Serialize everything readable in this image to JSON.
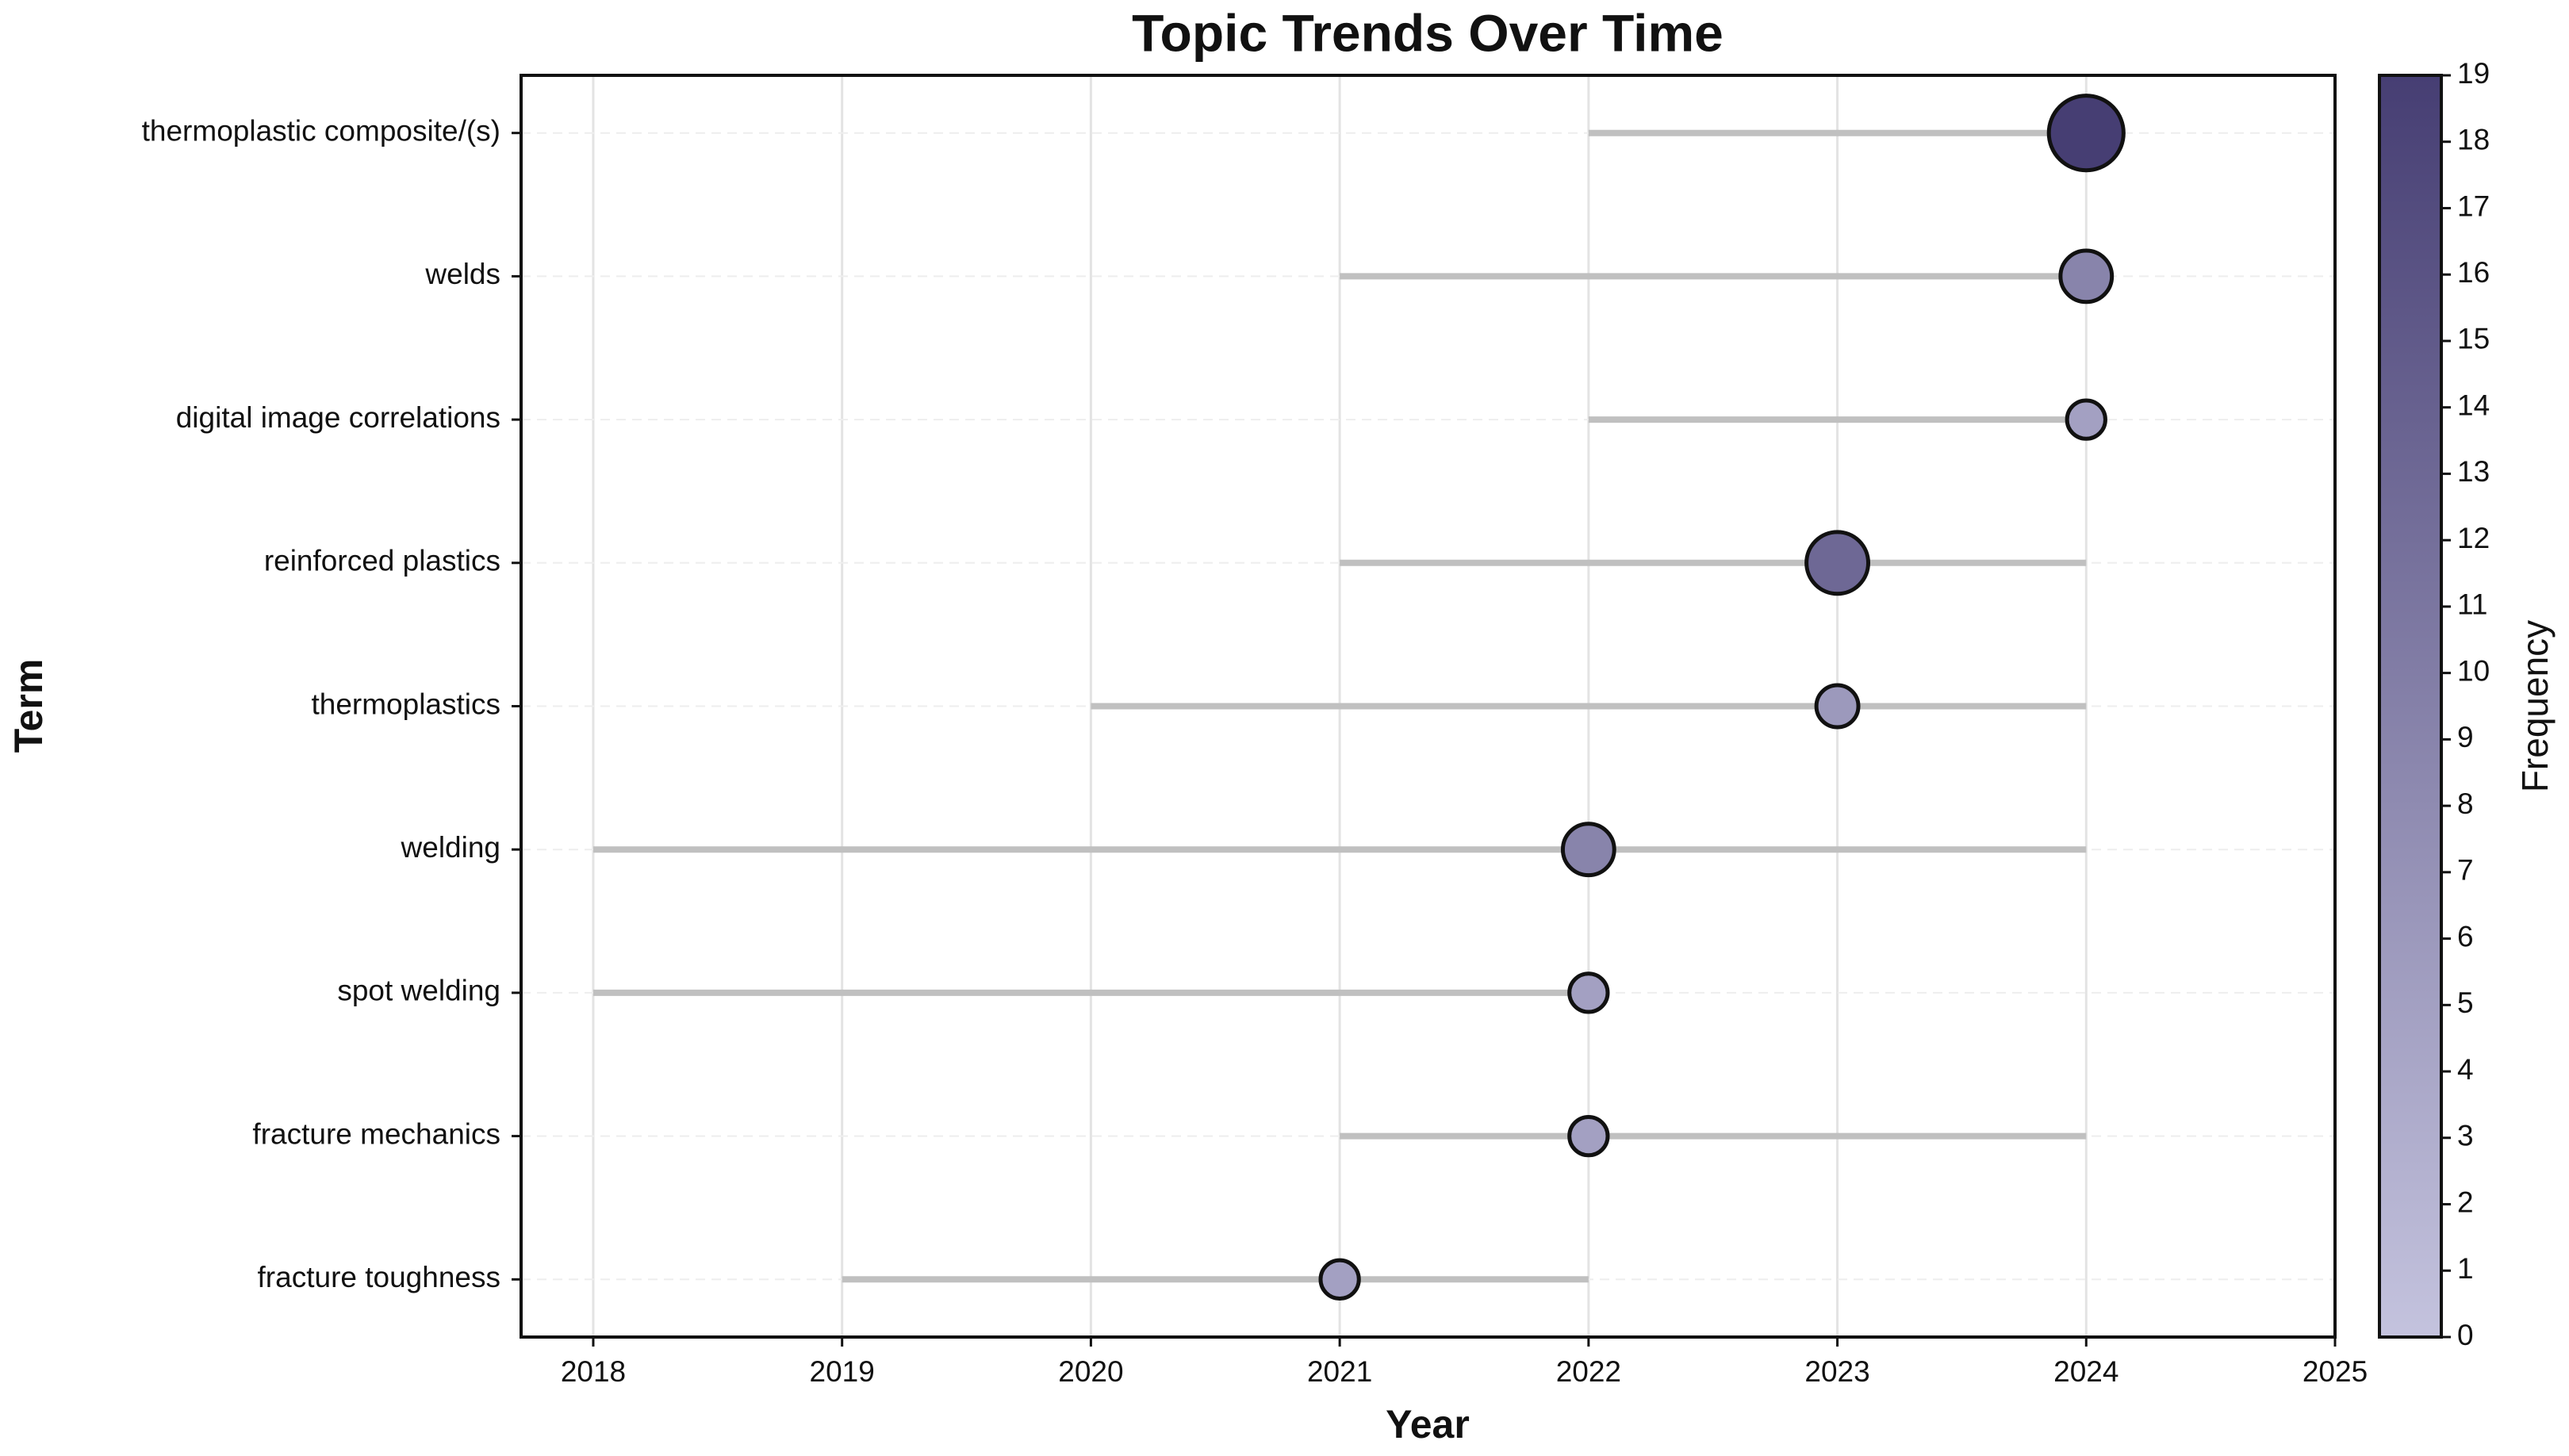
{
  "chart_data": {
    "type": "timeline",
    "title": "Topic Trends Over Time",
    "x_label": "Year",
    "y_label": "Term",
    "categories": [
      "thermoplastic composite/(s)",
      "welds",
      "digital image correlations",
      "reinforced plastics",
      "thermoplastics",
      "welding",
      "spot welding",
      "fracture mechanics",
      "fracture toughness"
    ],
    "start": [
      2022,
      2021,
      2022,
      2021,
      2020,
      2018,
      2018,
      2021,
      2019
    ],
    "end": [
      2024,
      2024,
      2024,
      2024,
      2024,
      2024,
      2022,
      2024,
      2022
    ],
    "peak": [
      2024,
      2024,
      2024,
      2023,
      2023,
      2022,
      2022,
      2022,
      2021
    ],
    "values": [
      19,
      9,
      5,
      13,
      6,
      9,
      5,
      5,
      5
    ],
    "range_color": "#c0c0c0",
    "colormap": [
      "#c4c3de",
      "#463e73"
    ],
    "xlim": [
      2017.71,
      2025
    ],
    "xticks": [
      2018,
      2019,
      2020,
      2021,
      2022,
      2023,
      2024,
      2025
    ],
    "grid": true,
    "colorbar": {
      "label": "Frequency",
      "clim": [
        0,
        19
      ],
      "ticks": [
        0,
        1,
        2,
        3,
        4,
        5,
        6,
        7,
        8,
        9,
        10,
        11,
        12,
        13,
        14,
        15,
        16,
        17,
        18,
        19
      ]
    }
  }
}
